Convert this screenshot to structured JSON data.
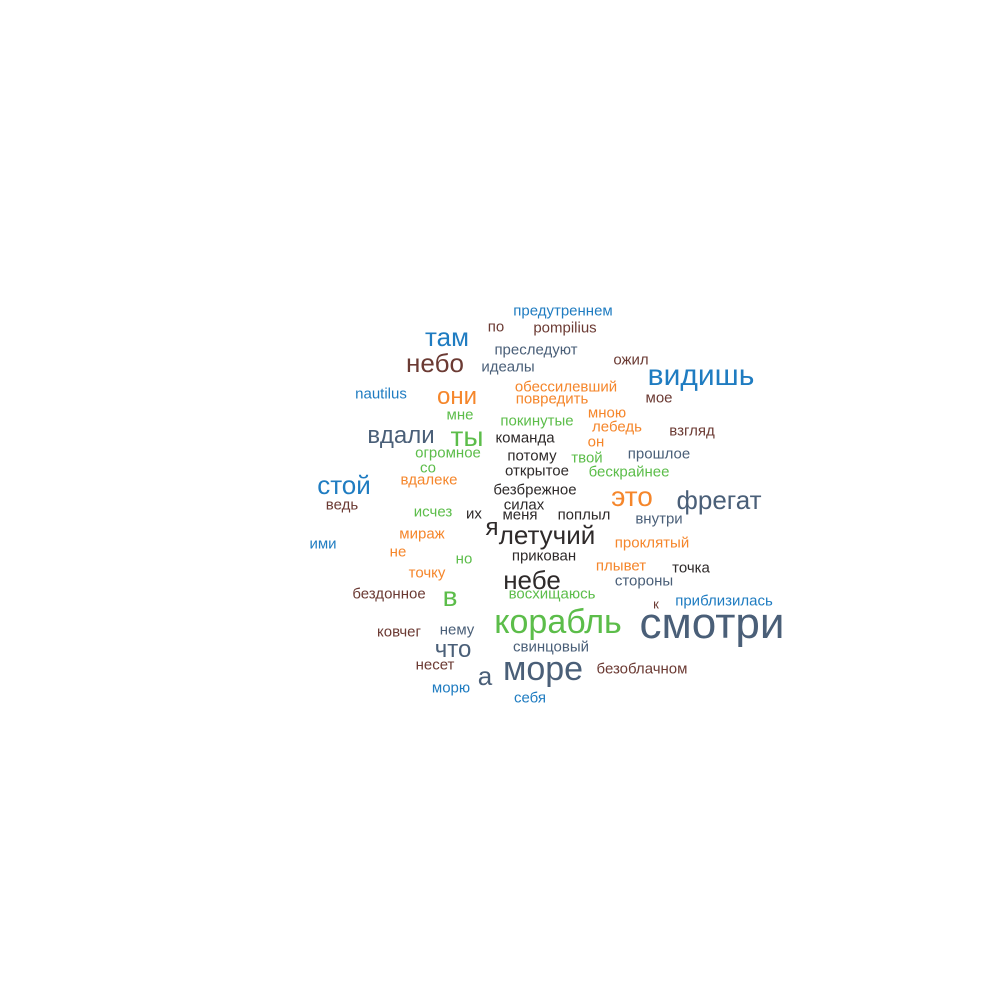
{
  "colors": {
    "blue": "#1f7cc1",
    "slate": "#4a5f78",
    "brown": "#6b3a33",
    "orange": "#f5862b",
    "green": "#5cbd4a",
    "dark": "#2e2a2a"
  },
  "words": [
    {
      "text": "смотри",
      "size": 44,
      "color": "slate"
    },
    {
      "text": "корабль",
      "size": 34,
      "color": "green"
    },
    {
      "text": "море",
      "size": 34,
      "color": "slate"
    },
    {
      "text": "видишь",
      "size": 30,
      "color": "blue"
    },
    {
      "text": "фрегат",
      "size": 26,
      "color": "slate"
    },
    {
      "text": "это",
      "size": 28,
      "color": "orange"
    },
    {
      "text": "летучий",
      "size": 26,
      "color": "dark"
    },
    {
      "text": "небе",
      "size": 26,
      "color": "dark"
    },
    {
      "text": "ты",
      "size": 28,
      "color": "green"
    },
    {
      "text": "вдали",
      "size": 24,
      "color": "slate"
    },
    {
      "text": "небо",
      "size": 26,
      "color": "brown"
    },
    {
      "text": "там",
      "size": 26,
      "color": "blue"
    },
    {
      "text": "стой",
      "size": 26,
      "color": "blue"
    },
    {
      "text": "они",
      "size": 24,
      "color": "orange"
    },
    {
      "text": "в",
      "size": 28,
      "color": "green"
    },
    {
      "text": "что",
      "size": 24,
      "color": "slate"
    },
    {
      "text": "а",
      "size": 26,
      "color": "slate"
    },
    {
      "text": "я",
      "size": 24,
      "color": "dark"
    },
    {
      "text": "предутреннем",
      "size": 15,
      "color": "blue"
    },
    {
      "text": "по",
      "size": 15,
      "color": "brown"
    },
    {
      "text": "pompilius",
      "size": 15,
      "color": "brown"
    },
    {
      "text": "преследуют",
      "size": 15,
      "color": "slate"
    },
    {
      "text": "идеалы",
      "size": 15,
      "color": "slate"
    },
    {
      "text": "ожил",
      "size": 15,
      "color": "brown"
    },
    {
      "text": "nautilus",
      "size": 15,
      "color": "blue"
    },
    {
      "text": "обессилевший",
      "size": 15,
      "color": "orange"
    },
    {
      "text": "повредить",
      "size": 15,
      "color": "orange"
    },
    {
      "text": "мое",
      "size": 15,
      "color": "brown"
    },
    {
      "text": "мне",
      "size": 15,
      "color": "green"
    },
    {
      "text": "покинутые",
      "size": 15,
      "color": "green"
    },
    {
      "text": "мною",
      "size": 15,
      "color": "orange"
    },
    {
      "text": "лебедь",
      "size": 15,
      "color": "orange"
    },
    {
      "text": "взгляд",
      "size": 15,
      "color": "brown"
    },
    {
      "text": "команда",
      "size": 15,
      "color": "dark"
    },
    {
      "text": "он",
      "size": 15,
      "color": "orange"
    },
    {
      "text": "огромное",
      "size": 15,
      "color": "green"
    },
    {
      "text": "потому",
      "size": 15,
      "color": "dark"
    },
    {
      "text": "твой",
      "size": 15,
      "color": "green"
    },
    {
      "text": "прошлое",
      "size": 15,
      "color": "slate"
    },
    {
      "text": "со",
      "size": 15,
      "color": "green"
    },
    {
      "text": "открытое",
      "size": 15,
      "color": "dark"
    },
    {
      "text": "бескрайнее",
      "size": 15,
      "color": "green"
    },
    {
      "text": "вдалеке",
      "size": 15,
      "color": "orange"
    },
    {
      "text": "безбрежное",
      "size": 15,
      "color": "dark"
    },
    {
      "text": "ведь",
      "size": 15,
      "color": "brown"
    },
    {
      "text": "силах",
      "size": 15,
      "color": "dark"
    },
    {
      "text": "исчез",
      "size": 15,
      "color": "green"
    },
    {
      "text": "их",
      "size": 15,
      "color": "dark"
    },
    {
      "text": "меня",
      "size": 15,
      "color": "dark"
    },
    {
      "text": "поплыл",
      "size": 15,
      "color": "dark"
    },
    {
      "text": "внутри",
      "size": 15,
      "color": "slate"
    },
    {
      "text": "мираж",
      "size": 15,
      "color": "orange"
    },
    {
      "text": "проклятый",
      "size": 15,
      "color": "orange"
    },
    {
      "text": "ими",
      "size": 15,
      "color": "blue"
    },
    {
      "text": "не",
      "size": 15,
      "color": "orange"
    },
    {
      "text": "но",
      "size": 15,
      "color": "green"
    },
    {
      "text": "прикован",
      "size": 15,
      "color": "dark"
    },
    {
      "text": "плывет",
      "size": 15,
      "color": "orange"
    },
    {
      "text": "точка",
      "size": 15,
      "color": "dark"
    },
    {
      "text": "точку",
      "size": 15,
      "color": "orange"
    },
    {
      "text": "стороны",
      "size": 15,
      "color": "slate"
    },
    {
      "text": "бездонное",
      "size": 15,
      "color": "brown"
    },
    {
      "text": "восхищаюсь",
      "size": 15,
      "color": "green"
    },
    {
      "text": "к",
      "size": 13,
      "color": "brown"
    },
    {
      "text": "приблизилась",
      "size": 15,
      "color": "blue"
    },
    {
      "text": "ковчег",
      "size": 15,
      "color": "brown"
    },
    {
      "text": "нему",
      "size": 15,
      "color": "slate"
    },
    {
      "text": "свинцовый",
      "size": 15,
      "color": "slate"
    },
    {
      "text": "несет",
      "size": 15,
      "color": "brown"
    },
    {
      "text": "безоблачном",
      "size": 15,
      "color": "brown"
    },
    {
      "text": "морю",
      "size": 15,
      "color": "blue"
    },
    {
      "text": "себя",
      "size": 15,
      "color": "blue"
    }
  ]
}
